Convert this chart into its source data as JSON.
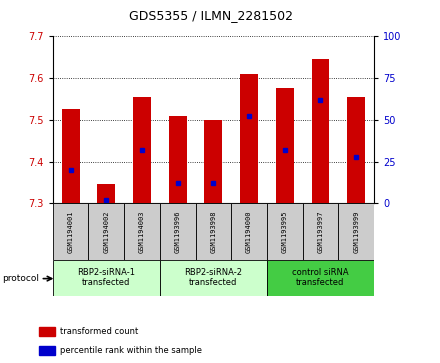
{
  "title": "GDS5355 / ILMN_2281502",
  "samples": [
    "GSM1194001",
    "GSM1194002",
    "GSM1194003",
    "GSM1193996",
    "GSM1193998",
    "GSM1194000",
    "GSM1193995",
    "GSM1193997",
    "GSM1193999"
  ],
  "transformed_count": [
    7.525,
    7.345,
    7.555,
    7.51,
    7.5,
    7.61,
    7.575,
    7.645,
    7.555
  ],
  "percentile_rank": [
    20,
    2,
    32,
    12,
    12,
    52,
    32,
    62,
    28
  ],
  "ylim": [
    7.3,
    7.7
  ],
  "yticks_left": [
    7.3,
    7.4,
    7.5,
    7.6,
    7.7
  ],
  "yticks_right": [
    0,
    25,
    50,
    75,
    100
  ],
  "bar_color": "#cc0000",
  "dot_color": "#0000cc",
  "bar_bottom": 7.3,
  "groups": [
    {
      "label": "RBP2-siRNA-1\ntransfected",
      "start": 0,
      "end": 3,
      "color": "#ccffcc"
    },
    {
      "label": "RBP2-siRNA-2\ntransfected",
      "start": 3,
      "end": 6,
      "color": "#ccffcc"
    },
    {
      "label": "control siRNA\ntransfected",
      "start": 6,
      "end": 9,
      "color": "#44cc44"
    }
  ],
  "protocol_label": "protocol",
  "legend_items": [
    {
      "label": "transformed count",
      "color": "#cc0000"
    },
    {
      "label": "percentile rank within the sample",
      "color": "#0000cc"
    }
  ],
  "left_label_color": "#cc0000",
  "right_label_color": "#0000cc",
  "grid_color": "#000000",
  "sample_box_color": "#cccccc",
  "bar_width": 0.5,
  "title_fontsize": 9,
  "tick_fontsize": 7,
  "sample_fontsize": 5,
  "group_fontsize": 6,
  "legend_fontsize": 6
}
